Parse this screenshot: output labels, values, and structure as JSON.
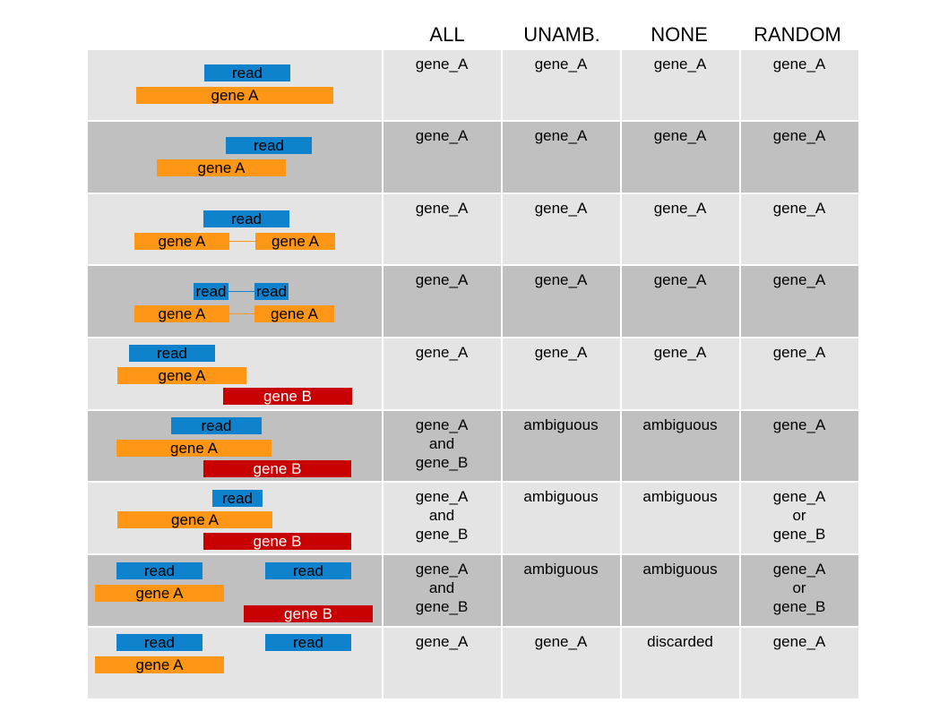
{
  "headers": [
    "ALL",
    "UNAMB.",
    "NONE",
    "RANDOM"
  ],
  "labels": {
    "read": "read",
    "gene_a": "gene A",
    "gene_b": "gene B"
  },
  "colors": {
    "read": "#0e82cc",
    "gene_a": "#ff9616",
    "gene_b": "#c80000",
    "row_light": "#e4e4e4",
    "row_dark": "#c0c0c0"
  },
  "rows": [
    {
      "all": [
        "gene_A"
      ],
      "unamb": [
        "gene_A"
      ],
      "none": [
        "gene_A"
      ],
      "random": [
        "gene_A"
      ]
    },
    {
      "all": [
        "gene_A"
      ],
      "unamb": [
        "gene_A"
      ],
      "none": [
        "gene_A"
      ],
      "random": [
        "gene_A"
      ]
    },
    {
      "all": [
        "gene_A"
      ],
      "unamb": [
        "gene_A"
      ],
      "none": [
        "gene_A"
      ],
      "random": [
        "gene_A"
      ]
    },
    {
      "all": [
        "gene_A"
      ],
      "unamb": [
        "gene_A"
      ],
      "none": [
        "gene_A"
      ],
      "random": [
        "gene_A"
      ]
    },
    {
      "all": [
        "gene_A"
      ],
      "unamb": [
        "gene_A"
      ],
      "none": [
        "gene_A"
      ],
      "random": [
        "gene_A"
      ]
    },
    {
      "all": [
        "gene_A",
        "and",
        "gene_B"
      ],
      "unamb": [
        "ambiguous"
      ],
      "none": [
        "ambiguous"
      ],
      "random": [
        "gene_A"
      ]
    },
    {
      "all": [
        "gene_A",
        "and",
        "gene_B"
      ],
      "unamb": [
        "ambiguous"
      ],
      "none": [
        "ambiguous"
      ],
      "random": [
        "gene_A",
        "or",
        "gene_B"
      ]
    },
    {
      "all": [
        "gene_A",
        "and",
        "gene_B"
      ],
      "unamb": [
        "ambiguous"
      ],
      "none": [
        "ambiguous"
      ],
      "random": [
        "gene_A",
        "or",
        "gene_B"
      ]
    },
    {
      "all": [
        "gene_A"
      ],
      "unamb": [
        "gene_A"
      ],
      "none": [
        "discarded"
      ],
      "random": [
        "gene_A"
      ]
    }
  ]
}
